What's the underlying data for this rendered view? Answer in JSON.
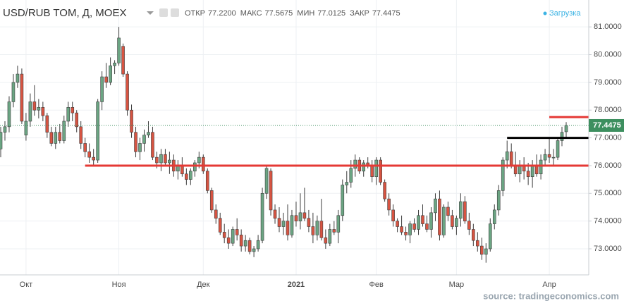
{
  "header": {
    "symbol": "USD/RUB TOM, Д, MOEX",
    "fields": [
      {
        "name": "ОТКР",
        "text": "77.2200"
      },
      {
        "name": "МАКС",
        "text": "77.5675"
      },
      {
        "name": "МИН",
        "text": "77.0125"
      },
      {
        "name": "ЗАКР",
        "text": "77.4475"
      }
    ],
    "status": "Загрузка"
  },
  "source": "source: tradingeconomics.com",
  "chart_data": {
    "type": "candlestick",
    "categories": [
      null,
      null,
      null,
      null,
      null,
      null,
      "Окт",
      null,
      null,
      null,
      null,
      null,
      null,
      null,
      null,
      null,
      null,
      null,
      null,
      null,
      null,
      null,
      null,
      null,
      null,
      null,
      null,
      null,
      "Ноя",
      null,
      null,
      null,
      null,
      null,
      null,
      null,
      null,
      null,
      null,
      null,
      null,
      null,
      null,
      null,
      null,
      null,
      null,
      null,
      "Дек",
      null,
      null,
      null,
      null,
      null,
      null,
      null,
      null,
      null,
      null,
      null,
      null,
      null,
      null,
      null,
      null,
      null,
      null,
      null,
      null,
      null,
      "2021",
      null,
      null,
      null,
      null,
      null,
      null,
      null,
      null,
      null,
      null,
      null,
      null,
      null,
      null,
      null,
      null,
      null,
      null,
      "Фев",
      null,
      null,
      null,
      null,
      null,
      null,
      null,
      null,
      null,
      null,
      null,
      null,
      null,
      null,
      null,
      null,
      null,
      null,
      "Мар",
      null,
      null,
      null,
      null,
      null,
      null,
      null,
      null,
      null,
      null,
      null,
      null,
      null,
      null,
      null,
      null,
      null,
      null,
      null,
      null,
      null,
      "Апр",
      null,
      null,
      null,
      null
    ],
    "open": [
      76.6,
      77.2,
      77.4,
      78.3,
      79.0,
      79.3,
      77.1,
      77.6,
      78.3,
      78.0,
      78.1,
      77.8,
      77.2,
      76.8,
      77.2,
      76.9,
      77.6,
      78.1,
      77.9,
      77.4,
      76.8,
      76.5,
      76.3,
      76.2,
      78.3,
      79.2,
      79.0,
      79.6,
      79.7,
      80.3,
      79.3,
      78.0,
      77.2,
      76.5,
      76.8,
      77.1,
      77.2,
      76.3,
      76.1,
      76.4,
      76.1,
      76.2,
      75.8,
      76.0,
      75.7,
      75.5,
      75.8,
      76.1,
      76.3,
      75.8,
      75.1,
      74.4,
      74.1,
      73.6,
      73.4,
      73.2,
      73.7,
      73.5,
      73.1,
      73.3,
      72.9,
      73.0,
      73.3,
      75.0,
      75.8,
      74.4,
      74.1,
      73.8,
      74.0,
      73.5,
      74.2,
      74.0,
      74.3,
      74.1,
      73.8,
      73.5,
      74.0,
      73.4,
      73.2,
      73.7,
      73.6,
      74.2,
      75.3,
      75.4,
      75.9,
      76.2,
      75.8,
      76.1,
      76.0,
      75.6,
      76.2,
      75.4,
      74.8,
      74.4,
      74.0,
      73.8,
      73.6,
      73.5,
      73.9,
      73.7,
      74.2,
      73.9,
      73.7,
      74.3,
      74.8,
      73.5,
      74.5,
      74.2,
      73.8,
      74.1,
      74.7,
      74.0,
      73.7,
      73.3,
      73.1,
      72.8,
      73.0,
      73.9,
      74.4,
      75.1,
      76.2,
      76.5,
      76.0,
      75.7,
      76.0,
      75.8,
      75.6,
      76.0,
      75.7,
      76.2,
      76.4,
      76.3,
      76.3,
      76.9,
      77.22
    ],
    "high": [
      77.4,
      77.6,
      78.5,
      79.3,
      79.6,
      79.5,
      77.9,
      78.6,
      78.9,
      78.4,
      78.3,
      77.9,
      77.4,
      77.4,
      77.5,
      77.8,
      78.3,
      78.3,
      78.0,
      77.6,
      77.0,
      76.8,
      76.6,
      78.4,
      79.4,
      79.7,
      79.9,
      79.8,
      81.0,
      80.4,
      79.4,
      78.2,
      77.4,
      77.0,
      77.3,
      77.6,
      77.4,
      76.5,
      76.6,
      76.6,
      76.5,
      76.4,
      76.2,
      76.3,
      75.9,
      75.9,
      76.2,
      76.5,
      76.4,
      75.9,
      75.2,
      74.6,
      74.3,
      73.9,
      73.7,
      73.8,
      74.1,
      73.7,
      73.5,
      73.4,
      73.1,
      73.5,
      75.2,
      76.0,
      75.9,
      74.6,
      74.5,
      74.3,
      74.6,
      74.4,
      74.7,
      75.0,
      75.2,
      74.4,
      74.3,
      74.2,
      74.8,
      73.7,
      73.9,
      74.0,
      74.4,
      75.5,
      75.8,
      76.2,
      76.4,
      76.3,
      76.2,
      76.3,
      76.2,
      76.3,
      76.3,
      75.5,
      75.0,
      74.6,
      74.1,
      74.2,
      73.8,
      74.0,
      74.1,
      74.4,
      74.6,
      74.2,
      74.5,
      75.0,
      75.1,
      74.6,
      74.7,
      74.4,
      74.2,
      75.0,
      74.9,
      74.3,
      73.9,
      73.6,
      73.4,
      73.2,
      74.1,
      74.6,
      75.3,
      76.3,
      76.9,
      76.8,
      76.5,
      76.2,
      76.3,
      76.1,
      76.2,
      76.4,
      76.4,
      76.6,
      77.0,
      76.6,
      77.0,
      77.4,
      77.5675
    ],
    "low": [
      76.3,
      76.9,
      77.2,
      78.1,
      78.8,
      77.5,
      76.9,
      77.4,
      77.8,
      77.7,
      77.6,
      77.0,
      76.7,
      76.6,
      76.8,
      76.8,
      77.4,
      77.6,
      77.2,
      76.6,
      76.3,
      76.1,
      76.0,
      76.1,
      78.0,
      78.8,
      78.9,
      79.3,
      79.6,
      79.2,
      77.8,
      77.0,
      76.3,
      76.2,
      76.5,
      77.0,
      76.2,
      75.9,
      75.8,
      76.0,
      75.7,
      75.6,
      75.5,
      75.6,
      75.3,
      75.3,
      75.6,
      75.9,
      75.7,
      75.0,
      74.3,
      73.9,
      73.5,
      73.2,
      73.0,
      73.1,
      73.3,
      72.9,
      72.9,
      72.8,
      72.7,
      72.9,
      73.2,
      74.8,
      74.2,
      73.9,
      73.6,
      73.5,
      73.3,
      73.4,
      73.8,
      73.7,
      74.0,
      73.6,
      73.2,
      73.3,
      73.3,
      73.0,
      73.1,
      73.5,
      73.2,
      74.0,
      75.0,
      75.2,
      75.6,
      75.7,
      75.6,
      75.9,
      75.4,
      75.3,
      75.3,
      74.7,
      74.2,
      73.8,
      73.6,
      73.5,
      73.3,
      73.2,
      73.6,
      73.5,
      73.8,
      73.6,
      73.4,
      74.0,
      73.3,
      73.4,
      74.0,
      73.7,
      73.5,
      73.8,
      73.9,
      73.5,
      73.1,
      72.9,
      72.6,
      72.5,
      72.9,
      73.7,
      74.2,
      74.9,
      75.9,
      75.9,
      75.6,
      75.4,
      75.5,
      75.3,
      75.2,
      75.6,
      75.5,
      76.0,
      76.1,
      76.0,
      76.2,
      76.7,
      77.0125
    ],
    "close": [
      77.2,
      77.4,
      78.3,
      79.0,
      79.3,
      77.6,
      77.6,
      78.3,
      78.0,
      78.1,
      77.8,
      77.2,
      76.8,
      77.2,
      76.9,
      77.6,
      78.1,
      77.9,
      77.4,
      76.8,
      76.5,
      76.3,
      76.2,
      78.3,
      79.2,
      79.0,
      79.6,
      79.7,
      80.6,
      79.3,
      78.0,
      77.2,
      76.5,
      76.8,
      77.1,
      77.2,
      76.3,
      76.1,
      76.4,
      76.1,
      76.2,
      75.8,
      76.0,
      75.7,
      75.5,
      75.8,
      76.1,
      76.3,
      75.8,
      75.1,
      74.4,
      74.1,
      73.6,
      73.4,
      73.2,
      73.7,
      73.5,
      73.1,
      73.3,
      72.9,
      73.0,
      73.3,
      75.0,
      75.9,
      74.4,
      74.1,
      73.8,
      74.0,
      73.5,
      74.2,
      74.0,
      74.3,
      74.1,
      73.8,
      73.5,
      74.0,
      73.4,
      73.2,
      73.7,
      73.6,
      74.2,
      75.3,
      75.4,
      75.9,
      76.2,
      75.8,
      76.1,
      76.0,
      75.6,
      76.2,
      75.4,
      74.8,
      74.4,
      74.0,
      73.8,
      73.6,
      73.5,
      73.9,
      73.7,
      74.2,
      73.9,
      73.7,
      74.3,
      74.8,
      73.5,
      74.5,
      74.2,
      73.8,
      74.1,
      74.7,
      74.0,
      73.7,
      73.3,
      73.1,
      72.8,
      73.0,
      73.9,
      74.4,
      75.1,
      76.2,
      76.5,
      76.0,
      75.7,
      76.0,
      75.8,
      75.6,
      76.0,
      75.7,
      76.2,
      76.4,
      76.3,
      76.3,
      76.9,
      77.2,
      77.4475
    ],
    "up_color": "#6ba583",
    "down_color": "#d75442",
    "levels": [
      {
        "value": 76.0,
        "color": "#e53935",
        "from": 20
      },
      {
        "value": 77.0,
        "color": "#000000",
        "from": 120
      },
      {
        "value": 77.75,
        "color": "#e53935",
        "from": 130
      }
    ],
    "ylim": [
      72.06,
      81.97
    ],
    "yticks": [
      {
        "value": 73,
        "label": "73.0000"
      },
      {
        "value": 74,
        "label": "74.0000"
      },
      {
        "value": 75,
        "label": "75.0000"
      },
      {
        "value": 76,
        "label": "76.0000"
      },
      {
        "value": 77,
        "label": "77.0000"
      },
      {
        "value": 78,
        "label": "78.0000"
      },
      {
        "value": 79,
        "label": "79.0000"
      },
      {
        "value": 80,
        "label": "80.0000"
      },
      {
        "value": 81,
        "label": "81.0000"
      }
    ],
    "grid": true
  }
}
